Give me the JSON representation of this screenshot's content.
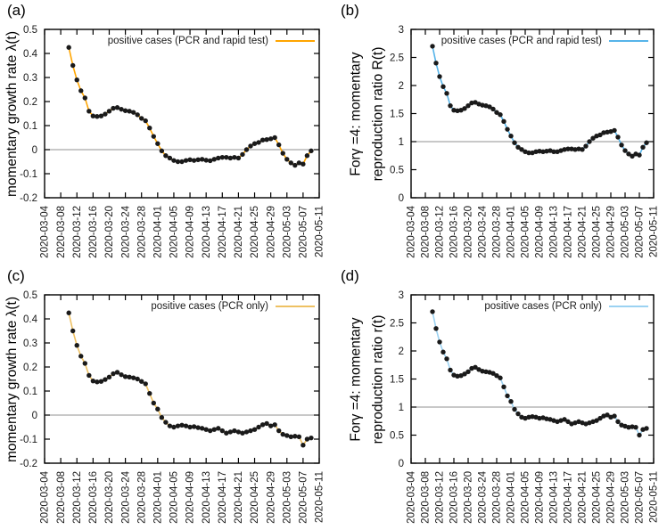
{
  "figure": {
    "background": "#ffffff",
    "x_range": [
      "2020-03-04",
      "2020-05-11"
    ],
    "x_tick_labels": [
      "2020-03-04",
      "2020-03-08",
      "2020-03-12",
      "2020-03-16",
      "2020-03-20",
      "2020-03-24",
      "2020-03-28",
      "2020-04-01",
      "2020-04-05",
      "2020-04-09",
      "2020-04-13",
      "2020-04-17",
      "2020-04-21",
      "2020-04-25",
      "2020-04-29",
      "2020-05-03",
      "2020-05-07",
      "2020-05-11"
    ],
    "dates": [
      "2020-03-10",
      "2020-03-11",
      "2020-03-12",
      "2020-03-13",
      "2020-03-14",
      "2020-03-15",
      "2020-03-16",
      "2020-03-17",
      "2020-03-18",
      "2020-03-19",
      "2020-03-20",
      "2020-03-21",
      "2020-03-22",
      "2020-03-23",
      "2020-03-24",
      "2020-03-25",
      "2020-03-26",
      "2020-03-27",
      "2020-03-28",
      "2020-03-29",
      "2020-03-30",
      "2020-03-31",
      "2020-04-01",
      "2020-04-02",
      "2020-04-03",
      "2020-04-04",
      "2020-04-05",
      "2020-04-06",
      "2020-04-07",
      "2020-04-08",
      "2020-04-09",
      "2020-04-10",
      "2020-04-11",
      "2020-04-12",
      "2020-04-13",
      "2020-04-14",
      "2020-04-15",
      "2020-04-16",
      "2020-04-17",
      "2020-04-18",
      "2020-04-19",
      "2020-04-20",
      "2020-04-21",
      "2020-04-22",
      "2020-04-23",
      "2020-04-24",
      "2020-04-25",
      "2020-04-26",
      "2020-04-27",
      "2020-04-28",
      "2020-04-29",
      "2020-04-30",
      "2020-05-01",
      "2020-05-02",
      "2020-05-03",
      "2020-05-04",
      "2020-05-05",
      "2020-05-06",
      "2020-05-07",
      "2020-05-08",
      "2020-05-09"
    ],
    "marker_color": "#1a1a1a",
    "ref_line_color": "#909090",
    "border_color": "#000000"
  },
  "chart_data": [
    {
      "type": "line",
      "tag": "(a)",
      "ylabel_lines": [
        "momentary growth rate λ(t)"
      ],
      "legend_label": "positive cases (PCR and rapid test)",
      "line_color": "#ffa500",
      "ylim": [
        -0.2,
        0.5
      ],
      "yticks": [
        "-0.2",
        "-0.1",
        "0",
        "0.1",
        "0.2",
        "0.3",
        "0.4",
        "0.5"
      ],
      "ref_line_y": 0,
      "values": [
        0.425,
        0.35,
        0.29,
        0.245,
        0.215,
        0.16,
        0.14,
        0.138,
        0.14,
        0.148,
        0.16,
        0.172,
        0.175,
        0.168,
        0.162,
        0.16,
        0.155,
        0.145,
        0.13,
        0.12,
        0.09,
        0.055,
        0.025,
        -0.005,
        -0.025,
        -0.035,
        -0.045,
        -0.05,
        -0.05,
        -0.045,
        -0.042,
        -0.045,
        -0.042,
        -0.04,
        -0.044,
        -0.046,
        -0.04,
        -0.035,
        -0.032,
        -0.032,
        -0.035,
        -0.032,
        -0.035,
        -0.02,
        0.0,
        0.015,
        0.025,
        0.03,
        0.04,
        0.042,
        0.045,
        0.05,
        0.02,
        -0.015,
        -0.04,
        -0.055,
        -0.065,
        -0.055,
        -0.06,
        -0.025,
        -0.005
      ]
    },
    {
      "type": "line",
      "tag": "(b)",
      "ylabel_lines": [
        "Forγ =4: momentary",
        "reproduction ratio R(t)"
      ],
      "legend_label": "positive cases (PCR and rapid test)",
      "line_color": "#56b4e9",
      "ylim": [
        0,
        3
      ],
      "yticks": [
        "0",
        "0.5",
        "1",
        "1.5",
        "2",
        "2.5",
        "3"
      ],
      "ref_line_y": 1,
      "values": [
        2.7,
        2.4,
        2.16,
        1.98,
        1.86,
        1.64,
        1.56,
        1.55,
        1.56,
        1.59,
        1.64,
        1.69,
        1.7,
        1.67,
        1.65,
        1.64,
        1.62,
        1.58,
        1.52,
        1.48,
        1.36,
        1.22,
        1.1,
        0.98,
        0.9,
        0.86,
        0.82,
        0.8,
        0.8,
        0.82,
        0.83,
        0.82,
        0.83,
        0.84,
        0.82,
        0.82,
        0.84,
        0.86,
        0.87,
        0.87,
        0.86,
        0.87,
        0.86,
        0.92,
        1.0,
        1.06,
        1.1,
        1.12,
        1.16,
        1.17,
        1.18,
        1.2,
        1.08,
        0.94,
        0.84,
        0.78,
        0.74,
        0.78,
        0.76,
        0.9,
        0.98
      ]
    },
    {
      "type": "line",
      "tag": "(c)",
      "ylabel_lines": [
        "momentary growth rate λ(t)"
      ],
      "legend_label": "positive cases (PCR only)",
      "line_color": "#eec163",
      "ylim": [
        -0.2,
        0.5
      ],
      "yticks": [
        "-0.2",
        "-0.1",
        "0",
        "0.1",
        "0.2",
        "0.3",
        "0.4",
        "0.5"
      ],
      "ref_line_y": 0,
      "values": [
        0.425,
        0.35,
        0.29,
        0.245,
        0.215,
        0.165,
        0.142,
        0.138,
        0.14,
        0.148,
        0.158,
        0.172,
        0.178,
        0.168,
        0.16,
        0.158,
        0.155,
        0.15,
        0.14,
        0.13,
        0.09,
        0.05,
        0.025,
        -0.01,
        -0.03,
        -0.045,
        -0.05,
        -0.045,
        -0.042,
        -0.045,
        -0.05,
        -0.048,
        -0.052,
        -0.055,
        -0.06,
        -0.065,
        -0.06,
        -0.055,
        -0.065,
        -0.075,
        -0.07,
        -0.065,
        -0.07,
        -0.075,
        -0.07,
        -0.065,
        -0.06,
        -0.05,
        -0.04,
        -0.035,
        -0.045,
        -0.04,
        -0.065,
        -0.08,
        -0.085,
        -0.09,
        -0.088,
        -0.09,
        -0.125,
        -0.1,
        -0.095
      ]
    },
    {
      "type": "line",
      "tag": "(d)",
      "ylabel_lines": [
        "Forγ =4: momentary",
        "reproduction ratio r(t)"
      ],
      "legend_label": "positive cases (PCR only)",
      "line_color": "#9bd2f2",
      "ylim": [
        0,
        3
      ],
      "yticks": [
        "0",
        "0.5",
        "1",
        "1.5",
        "2",
        "2.5",
        "3"
      ],
      "ref_line_y": 1,
      "values": [
        2.7,
        2.4,
        2.16,
        1.98,
        1.86,
        1.66,
        1.57,
        1.55,
        1.56,
        1.59,
        1.63,
        1.69,
        1.71,
        1.67,
        1.64,
        1.63,
        1.62,
        1.6,
        1.56,
        1.52,
        1.36,
        1.2,
        1.1,
        0.96,
        0.88,
        0.82,
        0.8,
        0.82,
        0.83,
        0.82,
        0.8,
        0.81,
        0.79,
        0.78,
        0.76,
        0.74,
        0.76,
        0.78,
        0.74,
        0.7,
        0.72,
        0.74,
        0.72,
        0.7,
        0.72,
        0.74,
        0.76,
        0.8,
        0.84,
        0.86,
        0.82,
        0.84,
        0.74,
        0.68,
        0.66,
        0.64,
        0.65,
        0.64,
        0.5,
        0.6,
        0.62
      ]
    }
  ]
}
